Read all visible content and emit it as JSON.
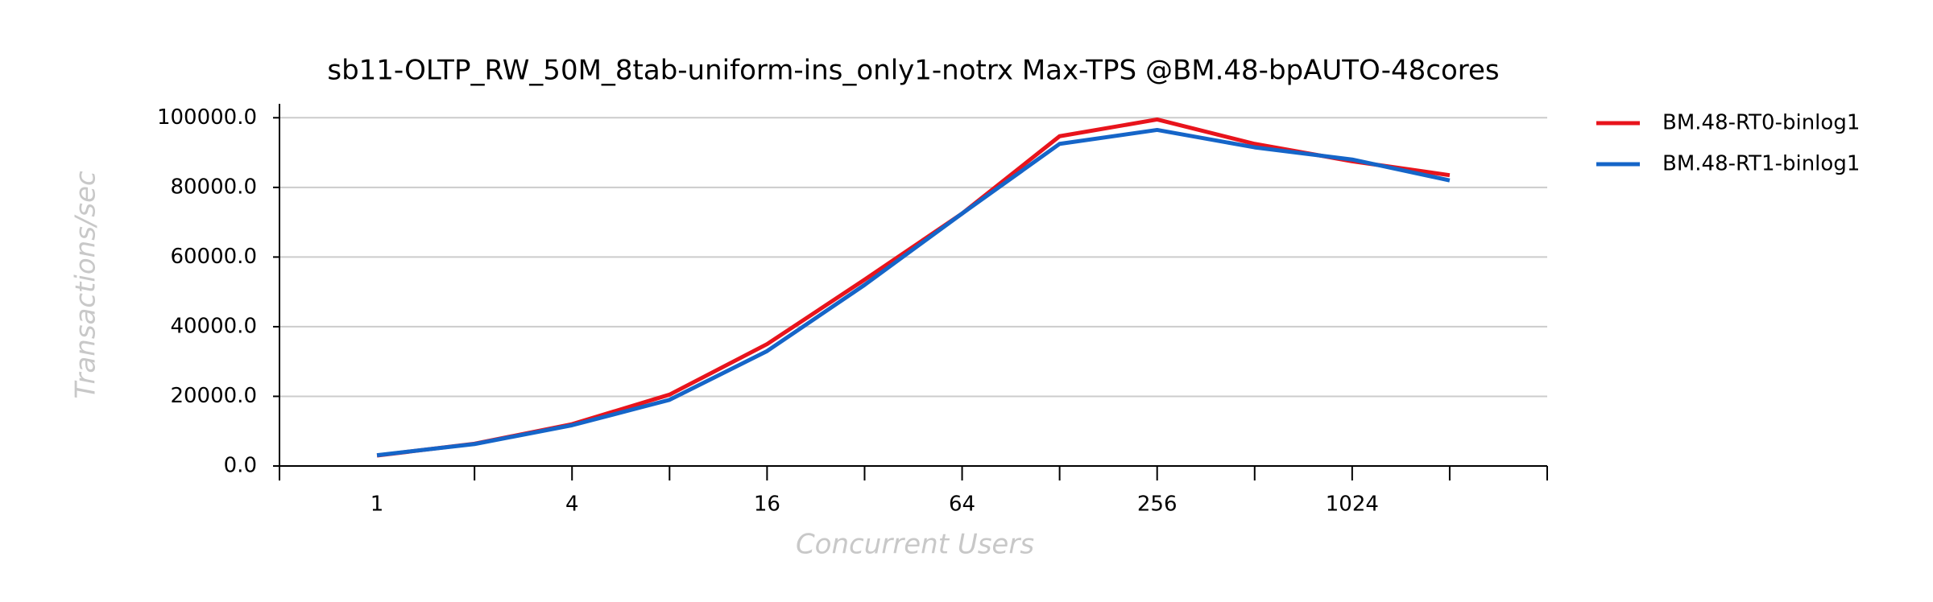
{
  "chart_data": {
    "type": "line",
    "title": "sb11-OLTP_RW_50M_8tab-uniform-ins_only1-notrx Max-TPS @BM.48-bpAUTO-48cores",
    "xlabel": "Concurrent Users",
    "ylabel": "Transactions/sec",
    "categories": [
      "1",
      null,
      "4",
      null,
      "16",
      null,
      "64",
      null,
      "256",
      null,
      "1024",
      null
    ],
    "series": [
      {
        "name": "BM.48-RT0-binlog1",
        "color": "#e8141c",
        "values": [
          3000,
          6400,
          12000,
          20500,
          35000,
          53500,
          72500,
          94700,
          99500,
          92500,
          87500,
          83500
        ]
      },
      {
        "name": "BM.48-RT1-binlog1",
        "color": "#1565c8",
        "values": [
          3100,
          6300,
          11700,
          19000,
          33000,
          52000,
          72500,
          92500,
          96500,
          91500,
          88000,
          82000
        ]
      }
    ],
    "ylim": [
      0,
      104000
    ],
    "yticks": [
      {
        "value": 0,
        "label": "0.0"
      },
      {
        "value": 20000,
        "label": "20000.0"
      },
      {
        "value": 40000,
        "label": "40000.0"
      },
      {
        "value": 60000,
        "label": "60000.0"
      },
      {
        "value": 80000,
        "label": "80000.0"
      },
      {
        "value": 100000,
        "label": "100000.0"
      }
    ],
    "grid": true,
    "legend": "outside-right"
  }
}
